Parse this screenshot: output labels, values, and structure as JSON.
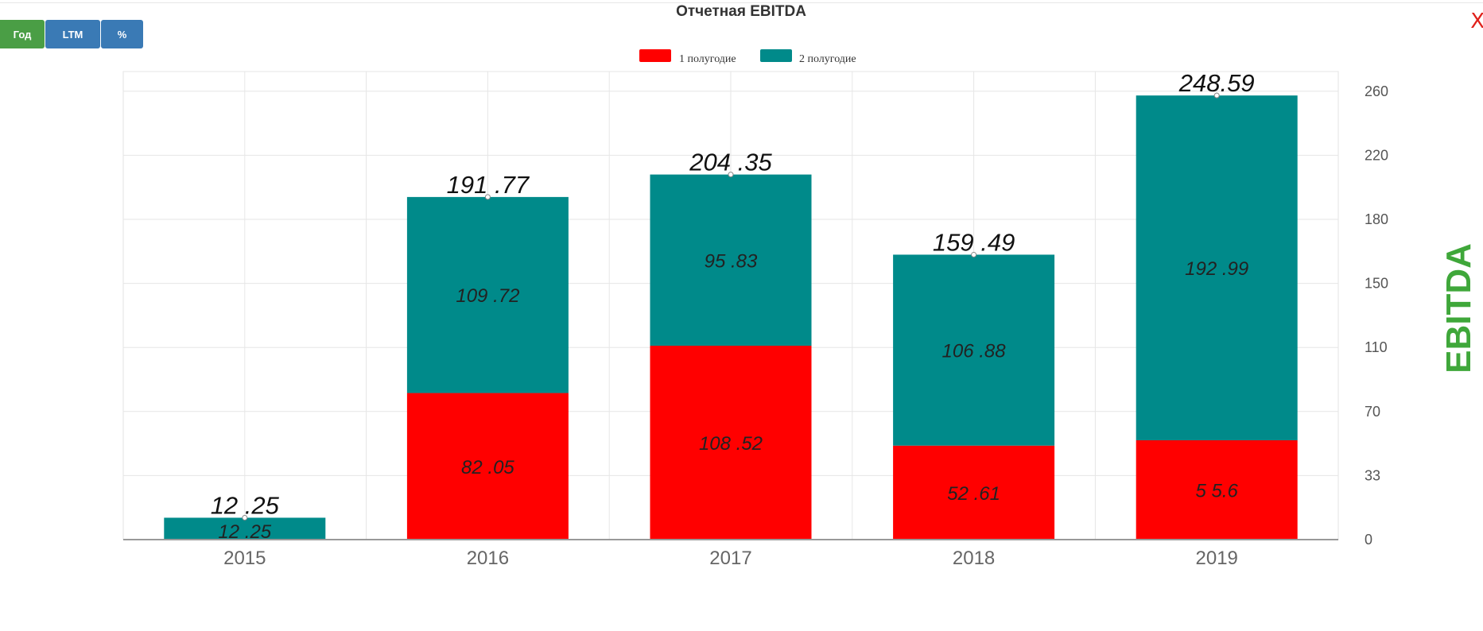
{
  "toolbar": {
    "year_label": "Год",
    "ltm_label": "LTM",
    "percent_label": "%",
    "close_label": "X"
  },
  "colors": {
    "series1": "#ff0000",
    "series2": "#008a8a",
    "ylabel": "#3fa73a",
    "button_green": "#4a9e45",
    "button_blue": "#3a7ab5",
    "close": "#e0201a"
  },
  "chart_data": {
    "type": "bar",
    "stacked": true,
    "title": "Отчетная EBITDA",
    "xlabel": "",
    "ylabel": "EBITDA",
    "categories": [
      "2015",
      "2016",
      "2017",
      "2018",
      "2019"
    ],
    "series": [
      {
        "name": "1 полугодие",
        "values": [
          0,
          82.05,
          108.52,
          52.61,
          55.6
        ],
        "labels": [
          "",
          "82 .05",
          "108 .52",
          "52 .61",
          "5 5.6"
        ]
      },
      {
        "name": "2 полугодие",
        "values": [
          12.25,
          109.72,
          95.83,
          106.88,
          192.99
        ],
        "labels": [
          "12 .25",
          "109 .72",
          "95 .83",
          "106 .88",
          "192 .99"
        ]
      }
    ],
    "totals": [
      12.25,
      191.77,
      204.35,
      159.49,
      248.59
    ],
    "total_labels": [
      "12 .25",
      "191 .77",
      "204 .35",
      "159 .49",
      "248.59"
    ],
    "y_ticks": [
      "0",
      "33",
      "70",
      "110",
      "150",
      "180",
      "220",
      "260"
    ],
    "ylim": [
      0,
      262
    ],
    "grid": true,
    "legend_position": "top-center",
    "y_axis_side": "right"
  }
}
